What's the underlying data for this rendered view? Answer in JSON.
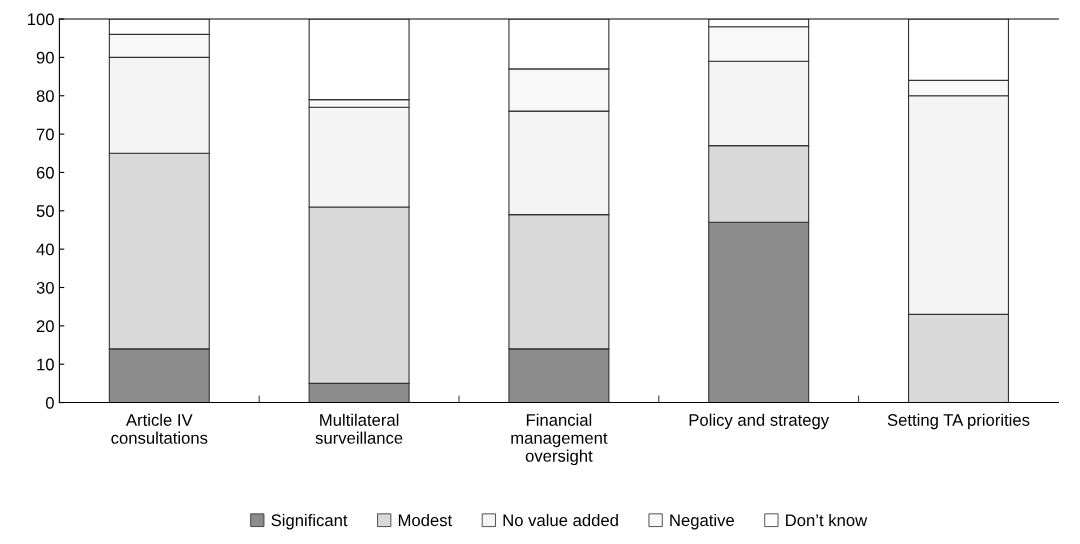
{
  "chart_data": {
    "type": "bar",
    "stacked": true,
    "categories": [
      "Article IV\nconsultations",
      "Multilateral\nsurveillance",
      "Financial\nmanagement\noversight",
      "Policy and strategy",
      "Setting TA priorities"
    ],
    "series": [
      {
        "name": "Significant",
        "color": "#8c8c8c",
        "values": [
          14,
          5,
          14,
          47,
          0
        ]
      },
      {
        "name": "Modest",
        "color": "#d9d9d9",
        "values": [
          51,
          46,
          35,
          20,
          23
        ]
      },
      {
        "name": "No value added",
        "color": "#f4f4f4",
        "values": [
          25,
          26,
          27,
          22,
          57
        ]
      },
      {
        "name": "Negative",
        "color": "#f8f8f8",
        "values": [
          6,
          2,
          11,
          9,
          4
        ]
      },
      {
        "name": "Don’t know",
        "color": "#ffffff",
        "values": [
          4,
          21,
          13,
          2,
          16
        ]
      }
    ],
    "ylim": [
      0,
      100
    ],
    "yticks": [
      0,
      10,
      20,
      30,
      40,
      50,
      60,
      70,
      80,
      90,
      100
    ],
    "grid": false,
    "legend": "bottom"
  }
}
